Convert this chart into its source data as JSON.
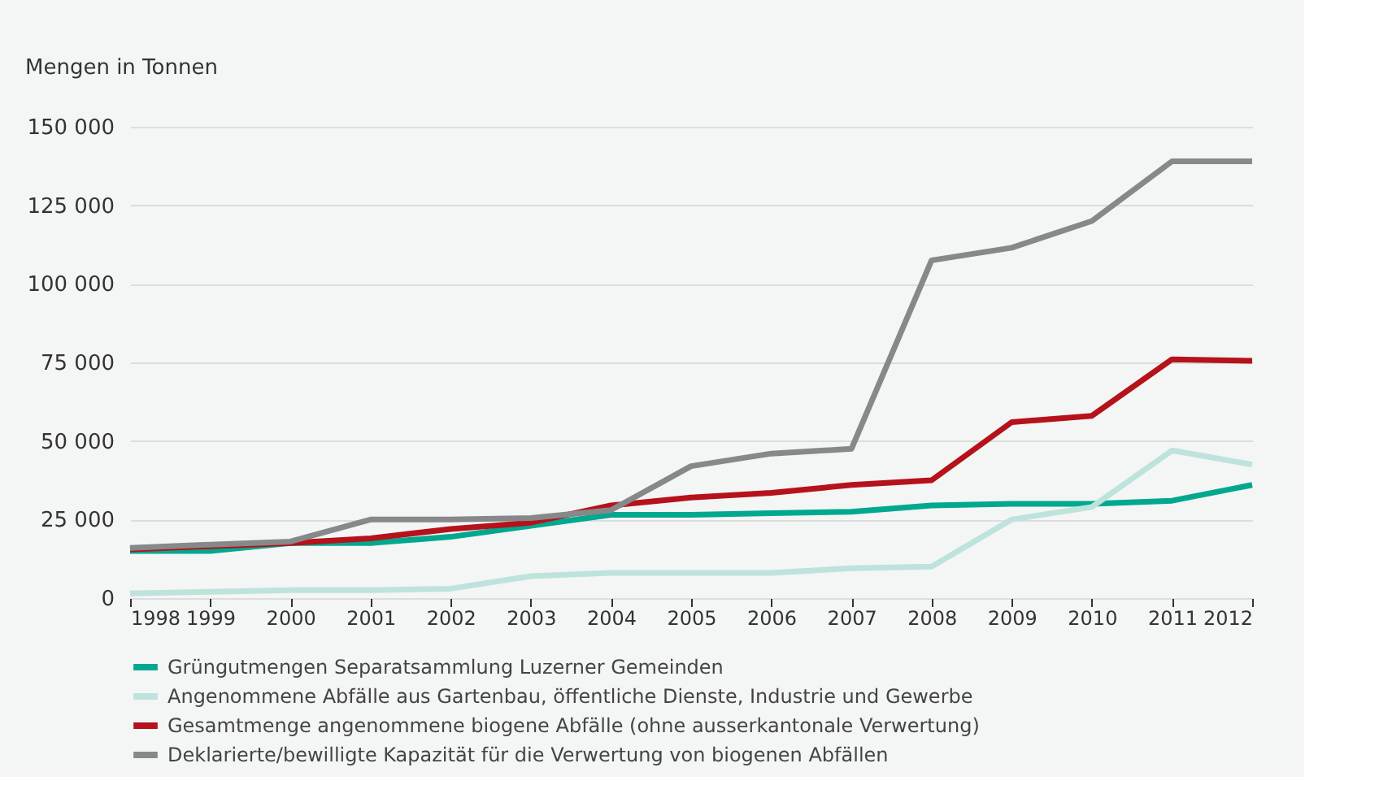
{
  "chart_data": {
    "type": "line",
    "ylabel": "Mengen in Tonnen",
    "x": [
      1998,
      1999,
      2000,
      2001,
      2002,
      2003,
      2004,
      2005,
      2006,
      2007,
      2008,
      2009,
      2010,
      2011,
      2012
    ],
    "xlim": [
      1998,
      2012
    ],
    "xticks": [
      1998,
      1999,
      2000,
      2001,
      2002,
      2003,
      2004,
      2005,
      2006,
      2007,
      2008,
      2009,
      2010,
      2011,
      2012
    ],
    "ylim": [
      0,
      150000
    ],
    "yticks": [
      0,
      {
        "value": 25000,
        "label": "25 000"
      },
      {
        "value": 50000,
        "label": "50 000"
      },
      {
        "value": 75000,
        "label": "75 000"
      },
      {
        "value": 100000,
        "label": "100 000"
      },
      {
        "value": 125000,
        "label": "125 000"
      },
      {
        "value": 150000,
        "label": "150 000"
      }
    ],
    "grid": "y",
    "legend": "bottom",
    "marker": "none",
    "line_style": "solid",
    "series": [
      {
        "name": "Grüngutmengen Separatsammlung Luzerner Gemeinden",
        "color": "#00a88e",
        "values": [
          15000,
          15000,
          17500,
          17500,
          19500,
          23000,
          26500,
          26500,
          27000,
          27500,
          29500,
          30000,
          30000,
          31000,
          36000
        ]
      },
      {
        "name": "Angenommene Abfälle aus Gartenbau, öffentliche Dienste, Industrie und Gewerbe",
        "color": "#bde3dc",
        "values": [
          1500,
          2000,
          2500,
          2500,
          3000,
          7000,
          8000,
          8000,
          8000,
          9500,
          10000,
          25000,
          29000,
          47000,
          42500
        ]
      },
      {
        "name": "Gesamtmenge angenommene biogene Abfälle (ohne ausserkantonale Verwertung)",
        "color": "#b5121b",
        "values": [
          15500,
          16500,
          17500,
          19000,
          22000,
          24000,
          29500,
          32000,
          33500,
          36000,
          37500,
          56000,
          58000,
          76000,
          75500
        ]
      },
      {
        "name": "Deklarierte/bewilligte Kapazität für die Verwertung von biogenen Abfällen",
        "color": "#87888a",
        "values": [
          16000,
          17000,
          18000,
          25000,
          25000,
          25500,
          28000,
          42000,
          46000,
          47500,
          107500,
          111500,
          120000,
          139000,
          139000
        ]
      }
    ]
  }
}
